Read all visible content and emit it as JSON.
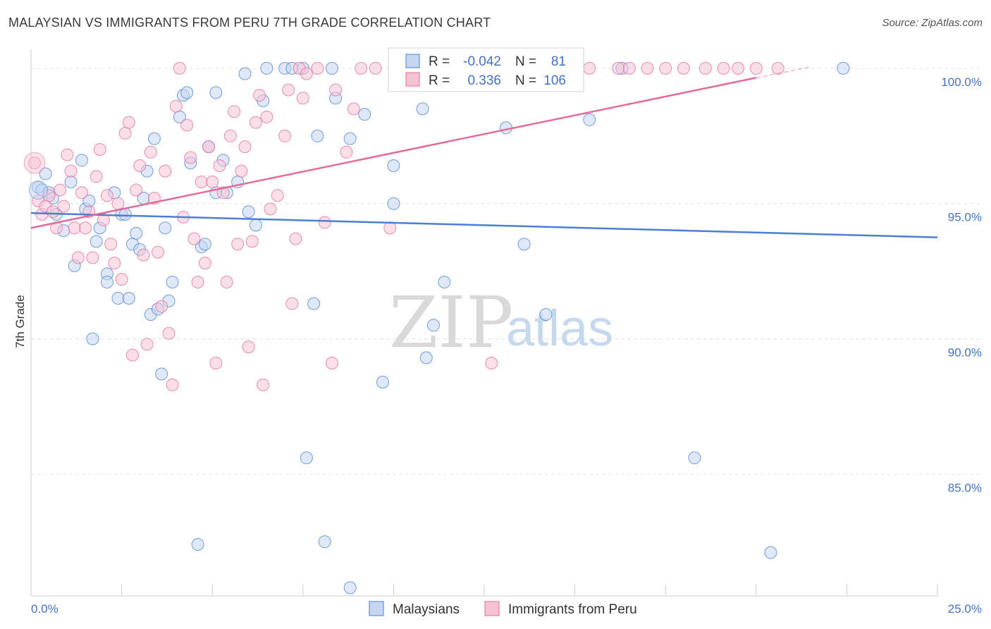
{
  "chart_data": {
    "type": "scatter",
    "title": "MALAYSIAN VS IMMIGRANTS FROM PERU 7TH GRADE CORRELATION CHART",
    "source": "Source: ZipAtlas.com",
    "xlabel": "",
    "ylabel": "7th Grade",
    "xlim": [
      0,
      25
    ],
    "ylim": [
      80.5,
      100.7
    ],
    "x_tick_labels": [
      "0.0%",
      "25.0%"
    ],
    "y_ticks": [
      85,
      90,
      95,
      100
    ],
    "y_tick_labels": [
      "85.0%",
      "90.0%",
      "95.0%",
      "100.0%"
    ],
    "grid": true,
    "watermark": {
      "zip": "ZIP",
      "atlas": "atlas"
    },
    "legend_stats": [
      {
        "r_label": "R =",
        "r_value": "-0.042",
        "n_label": "N =",
        "n_value": "81"
      },
      {
        "r_label": "R =",
        "r_value": "0.336",
        "n_label": "N =",
        "n_value": "106"
      }
    ],
    "series": [
      {
        "name": "Malaysians",
        "color": "#4a7fd4",
        "fill": "#c4d6f2",
        "trend": {
          "x0": 0,
          "y0": 94.65,
          "x1": 25,
          "y1": 93.75
        },
        "points": [
          [
            0.2,
            95.6
          ],
          [
            0.3,
            95.5
          ],
          [
            0.4,
            96.1
          ],
          [
            0.5,
            95.4
          ],
          [
            0.6,
            95.2
          ],
          [
            0.7,
            94.6
          ],
          [
            0.9,
            94.0
          ],
          [
            1.1,
            95.8
          ],
          [
            1.2,
            92.7
          ],
          [
            1.4,
            96.6
          ],
          [
            1.5,
            94.8
          ],
          [
            1.6,
            95.1
          ],
          [
            1.7,
            90.0
          ],
          [
            1.8,
            93.6
          ],
          [
            1.9,
            94.1
          ],
          [
            2.1,
            92.4
          ],
          [
            2.1,
            92.1
          ],
          [
            2.3,
            95.4
          ],
          [
            2.4,
            91.5
          ],
          [
            2.5,
            94.6
          ],
          [
            2.6,
            94.6
          ],
          [
            2.7,
            91.5
          ],
          [
            2.8,
            93.5
          ],
          [
            2.9,
            93.9
          ],
          [
            3.0,
            93.3
          ],
          [
            3.1,
            95.2
          ],
          [
            3.2,
            96.2
          ],
          [
            3.3,
            90.9
          ],
          [
            3.4,
            97.4
          ],
          [
            3.5,
            91.1
          ],
          [
            3.6,
            88.7
          ],
          [
            3.7,
            94.1
          ],
          [
            3.8,
            91.4
          ],
          [
            3.9,
            92.1
          ],
          [
            4.1,
            98.2
          ],
          [
            4.2,
            99.0
          ],
          [
            4.3,
            99.1
          ],
          [
            4.4,
            96.5
          ],
          [
            4.6,
            82.4
          ],
          [
            4.7,
            93.4
          ],
          [
            4.8,
            93.5
          ],
          [
            4.9,
            97.1
          ],
          [
            5.1,
            95.4
          ],
          [
            5.1,
            99.1
          ],
          [
            5.3,
            96.6
          ],
          [
            5.4,
            95.4
          ],
          [
            5.7,
            95.8
          ],
          [
            5.9,
            99.8
          ],
          [
            6.0,
            94.7
          ],
          [
            6.2,
            94.2
          ],
          [
            6.4,
            98.8
          ],
          [
            6.5,
            100.0
          ],
          [
            7.0,
            100.0
          ],
          [
            7.2,
            100.0
          ],
          [
            7.5,
            100.0
          ],
          [
            7.6,
            85.6
          ],
          [
            7.8,
            91.3
          ],
          [
            7.9,
            97.5
          ],
          [
            8.1,
            82.5
          ],
          [
            8.3,
            100.0
          ],
          [
            8.4,
            98.9
          ],
          [
            8.8,
            80.8
          ],
          [
            8.8,
            97.4
          ],
          [
            9.2,
            98.3
          ],
          [
            9.7,
            88.4
          ],
          [
            10.0,
            95.0
          ],
          [
            10.0,
            96.4
          ],
          [
            10.2,
            100.0
          ],
          [
            10.8,
            98.5
          ],
          [
            10.9,
            89.3
          ],
          [
            11.1,
            90.5
          ],
          [
            11.4,
            92.1
          ],
          [
            13.1,
            97.8
          ],
          [
            13.6,
            93.5
          ],
          [
            13.8,
            100.0
          ],
          [
            14.2,
            90.9
          ],
          [
            15.4,
            98.1
          ],
          [
            16.3,
            100.0
          ],
          [
            18.3,
            85.6
          ],
          [
            20.4,
            82.1
          ],
          [
            22.4,
            100.0
          ]
        ]
      },
      {
        "name": "Immigrants from Peru",
        "color": "#e36b97",
        "fill": "#f6c3d5",
        "trend": {
          "x0": 0,
          "y0": 94.1,
          "x1": 20,
          "y1": 99.65
        },
        "trend_dash": {
          "x0": 20,
          "y0": 99.65,
          "x1": 21.5,
          "y1": 100.05
        },
        "points": [
          [
            0.1,
            96.5
          ],
          [
            0.2,
            95.1
          ],
          [
            0.3,
            94.6
          ],
          [
            0.4,
            94.9
          ],
          [
            0.5,
            95.3
          ],
          [
            0.6,
            94.7
          ],
          [
            0.7,
            94.1
          ],
          [
            0.8,
            95.5
          ],
          [
            0.9,
            94.9
          ],
          [
            1.0,
            96.8
          ],
          [
            1.1,
            96.2
          ],
          [
            1.2,
            94.1
          ],
          [
            1.3,
            93.0
          ],
          [
            1.4,
            95.4
          ],
          [
            1.5,
            94.1
          ],
          [
            1.6,
            94.7
          ],
          [
            1.7,
            93.0
          ],
          [
            1.8,
            96.0
          ],
          [
            1.9,
            97.0
          ],
          [
            2.0,
            94.4
          ],
          [
            2.1,
            95.3
          ],
          [
            2.2,
            93.5
          ],
          [
            2.3,
            92.8
          ],
          [
            2.4,
            95.0
          ],
          [
            2.5,
            92.2
          ],
          [
            2.6,
            97.6
          ],
          [
            2.7,
            98.0
          ],
          [
            2.8,
            89.4
          ],
          [
            2.9,
            95.5
          ],
          [
            3.0,
            96.4
          ],
          [
            3.1,
            93.1
          ],
          [
            3.2,
            89.8
          ],
          [
            3.3,
            96.9
          ],
          [
            3.4,
            95.2
          ],
          [
            3.5,
            93.2
          ],
          [
            3.6,
            91.2
          ],
          [
            3.7,
            96.2
          ],
          [
            3.8,
            90.2
          ],
          [
            3.9,
            88.3
          ],
          [
            4.0,
            98.6
          ],
          [
            4.1,
            100.0
          ],
          [
            4.2,
            94.5
          ],
          [
            4.3,
            97.9
          ],
          [
            4.4,
            96.7
          ],
          [
            4.5,
            93.7
          ],
          [
            4.6,
            92.1
          ],
          [
            4.7,
            95.8
          ],
          [
            4.8,
            92.8
          ],
          [
            4.9,
            97.1
          ],
          [
            5.0,
            95.8
          ],
          [
            5.1,
            89.1
          ],
          [
            5.2,
            96.4
          ],
          [
            5.3,
            95.4
          ],
          [
            5.4,
            92.1
          ],
          [
            5.5,
            97.5
          ],
          [
            5.6,
            98.4
          ],
          [
            5.7,
            93.5
          ],
          [
            5.8,
            96.2
          ],
          [
            5.9,
            97.1
          ],
          [
            6.0,
            89.7
          ],
          [
            6.1,
            93.6
          ],
          [
            6.2,
            98.0
          ],
          [
            6.3,
            99.0
          ],
          [
            6.4,
            88.3
          ],
          [
            6.5,
            98.2
          ],
          [
            6.6,
            94.8
          ],
          [
            6.8,
            95.3
          ],
          [
            7.0,
            97.5
          ],
          [
            7.1,
            99.2
          ],
          [
            7.2,
            91.3
          ],
          [
            7.3,
            93.7
          ],
          [
            7.4,
            100.0
          ],
          [
            7.5,
            98.9
          ],
          [
            7.6,
            99.8
          ],
          [
            7.9,
            100.0
          ],
          [
            8.1,
            94.3
          ],
          [
            8.3,
            89.1
          ],
          [
            8.4,
            99.2
          ],
          [
            8.7,
            96.9
          ],
          [
            8.9,
            98.5
          ],
          [
            9.1,
            100.0
          ],
          [
            9.5,
            100.0
          ],
          [
            9.9,
            94.1
          ],
          [
            10.2,
            100.0
          ],
          [
            10.4,
            100.0
          ],
          [
            10.6,
            100.0
          ],
          [
            11.2,
            100.0
          ],
          [
            11.8,
            100.0
          ],
          [
            12.6,
            100.0
          ],
          [
            12.7,
            89.1
          ],
          [
            12.9,
            100.0
          ],
          [
            13.2,
            100.0
          ],
          [
            13.5,
            100.0
          ],
          [
            14.0,
            100.0
          ],
          [
            14.7,
            100.0
          ],
          [
            15.4,
            100.0
          ],
          [
            16.2,
            100.0
          ],
          [
            16.5,
            100.0
          ],
          [
            17.0,
            100.0
          ],
          [
            17.5,
            100.0
          ],
          [
            18.0,
            100.0
          ],
          [
            18.6,
            100.0
          ],
          [
            19.1,
            100.0
          ],
          [
            19.5,
            100.0
          ],
          [
            20.0,
            100.0
          ],
          [
            20.6,
            100.0
          ]
        ]
      }
    ]
  }
}
